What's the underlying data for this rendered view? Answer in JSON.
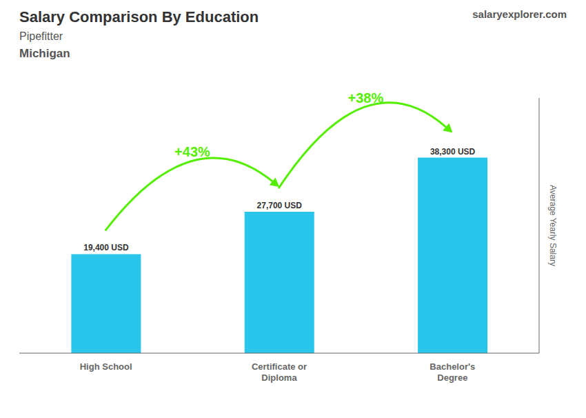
{
  "chart_data": {
    "type": "bar",
    "title": "Salary Comparison By Education",
    "subtitle": [
      "Pipefitter",
      "Michigan"
    ],
    "ylabel": "Average Yearly Salary",
    "categories": [
      "High School",
      "Certificate or\nDiploma",
      "Bachelor's\nDegree"
    ],
    "values": [
      19400,
      27700,
      38300
    ],
    "value_labels": [
      "19,400 USD",
      "27,700 USD",
      "38,300 USD"
    ],
    "data_labels": true,
    "color": "#29c5ea",
    "ylim": [
      0,
      50000
    ],
    "tick_labels": "x",
    "grid": false,
    "annotations": [
      {
        "text": "+43%",
        "color": "#55ee00",
        "from": "High School",
        "to": "Certificate or\nDiploma"
      },
      {
        "text": "+38%",
        "color": "#55ee00",
        "from": "Certificate or\nDiploma",
        "to": "Bachelor's\nDegree"
      },
      {
        "text": "salaryexplorer.com"
      }
    ]
  }
}
